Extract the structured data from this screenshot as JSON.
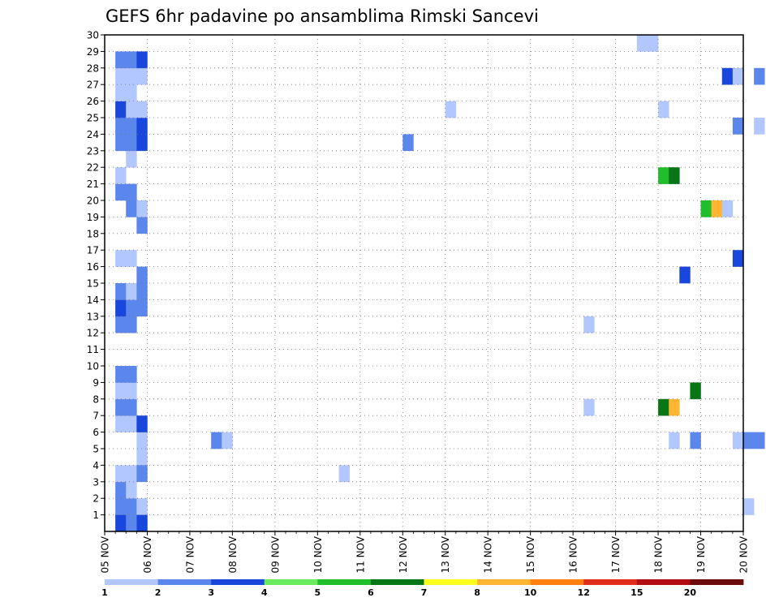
{
  "chart_data": {
    "type": "heatmap",
    "title": "GEFS 6hr padavine po ansamblima Rimski Sancevi",
    "xlabel": "",
    "ylabel": "",
    "x_tick_labels": [
      "05 NOV",
      "06 NOV",
      "07 NOV",
      "08 NOV",
      "09 NOV",
      "10 NOV",
      "11 NOV",
      "12 NOV",
      "13 NOV",
      "14 NOV",
      "15 NOV",
      "16 NOV",
      "17 NOV",
      "18 NOV",
      "19 NOV",
      "20 NOV"
    ],
    "xlim_days": [
      0,
      15
    ],
    "steps_per_day": 4,
    "y_tick_labels": [
      1,
      2,
      3,
      4,
      5,
      6,
      7,
      8,
      9,
      10,
      11,
      12,
      13,
      14,
      15,
      16,
      17,
      18,
      19,
      20,
      21,
      22,
      23,
      24,
      25,
      26,
      27,
      28,
      29,
      30
    ],
    "ylim": [
      0,
      30
    ],
    "grid": true,
    "colorbar": {
      "boundaries": [
        "1",
        "2",
        "3",
        "4",
        "5",
        "6",
        "7",
        "8",
        "10",
        "12",
        "15",
        "20"
      ],
      "colors": [
        "#b3c7ff",
        "#5b87ec",
        "#1947dc",
        "#6bea5e",
        "#1fbe2a",
        "#087614",
        "#ffff1e",
        "#ffb432",
        "#ff7f0f",
        "#e12e1a",
        "#b10f12",
        "#6a0b0c"
      ],
      "placement": "bottom"
    },
    "cells": [
      [
        0,
        1,
        2
      ],
      [
        0,
        0,
        3
      ],
      [
        0,
        2,
        2
      ],
      [
        0,
        3,
        1
      ],
      [
        0,
        6,
        1
      ],
      [
        0,
        7,
        2
      ],
      [
        0,
        8,
        1
      ],
      [
        0,
        9,
        2
      ],
      [
        0,
        12,
        2
      ],
      [
        0,
        13,
        3
      ],
      [
        0,
        14,
        2
      ],
      [
        0,
        16,
        1
      ],
      [
        0,
        20,
        2
      ],
      [
        0,
        21,
        1
      ],
      [
        0,
        23,
        2
      ],
      [
        0,
        24,
        2
      ],
      [
        0,
        25,
        3
      ],
      [
        0,
        26,
        1
      ],
      [
        0,
        27,
        1
      ],
      [
        0,
        28,
        2
      ],
      [
        1,
        0,
        2
      ],
      [
        1,
        1,
        2
      ],
      [
        1,
        2,
        1
      ],
      [
        1,
        3,
        1
      ],
      [
        1,
        6,
        1
      ],
      [
        1,
        7,
        2
      ],
      [
        1,
        8,
        1
      ],
      [
        1,
        9,
        2
      ],
      [
        1,
        12,
        2
      ],
      [
        1,
        13,
        2
      ],
      [
        1,
        14,
        1
      ],
      [
        1,
        16,
        1
      ],
      [
        1,
        19,
        2
      ],
      [
        1,
        20,
        2
      ],
      [
        1,
        22,
        1
      ],
      [
        1,
        23,
        2
      ],
      [
        1,
        24,
        2
      ],
      [
        1,
        25,
        1
      ],
      [
        1,
        26,
        1
      ],
      [
        1,
        27,
        1
      ],
      [
        1,
        28,
        2
      ],
      [
        2,
        0,
        1
      ],
      [
        2,
        1,
        1
      ],
      [
        2,
        4,
        1
      ],
      [
        2,
        5,
        1
      ],
      [
        2,
        6,
        3
      ],
      [
        2,
        13,
        2
      ],
      [
        2,
        14,
        2
      ],
      [
        2,
        15,
        2
      ],
      [
        2,
        18,
        2
      ],
      [
        2,
        19,
        1
      ],
      [
        2,
        23,
        3
      ],
      [
        2,
        24,
        3
      ],
      [
        2,
        25,
        1
      ],
      [
        2,
        27,
        1
      ],
      [
        2,
        28,
        3
      ],
      [
        2,
        3,
        2
      ],
      [
        2,
        0,
        3
      ],
      [
        9,
        5,
        2
      ],
      [
        10,
        5,
        1
      ],
      [
        21,
        3,
        1
      ],
      [
        27,
        23,
        2
      ],
      [
        31,
        25,
        1
      ],
      [
        44,
        12,
        1
      ],
      [
        44,
        7,
        1
      ],
      [
        49,
        29,
        1
      ],
      [
        50,
        29,
        1
      ],
      [
        51,
        21,
        5
      ],
      [
        52,
        21,
        6
      ],
      [
        51,
        7,
        6
      ],
      [
        52,
        7,
        8
      ],
      [
        51,
        25,
        1
      ],
      [
        52,
        5,
        1
      ],
      [
        53,
        15,
        3
      ],
      [
        54,
        5,
        2
      ],
      [
        54,
        8,
        6
      ],
      [
        55,
        19,
        5
      ],
      [
        56,
        19,
        8
      ],
      [
        57,
        19,
        1
      ],
      [
        57,
        27,
        3
      ],
      [
        58,
        16,
        3
      ],
      [
        58,
        24,
        2
      ],
      [
        58,
        5,
        1
      ],
      [
        58,
        27,
        1
      ],
      [
        59,
        1,
        1
      ],
      [
        59,
        5,
        2
      ],
      [
        60,
        5,
        2
      ],
      [
        60,
        27,
        2
      ],
      [
        60,
        24,
        1
      ]
    ]
  }
}
